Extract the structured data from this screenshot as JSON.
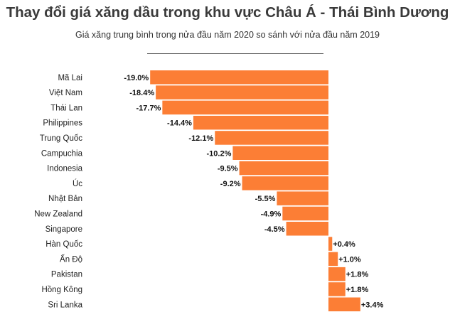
{
  "header": {
    "title": "Thay đổi giá xăng dầu trong khu vực Châu Á - Thái Bình Dương",
    "subtitle": "Giá xăng trung bình trong nửa đầu năm 2020 so sánh với nửa đầu năm 2019"
  },
  "colors": {
    "bar": "#fc7e35"
  },
  "chart_data": {
    "type": "bar",
    "orientation": "horizontal",
    "title": "Thay đổi giá xăng dầu trong khu vực Châu Á - Thái Bình Dương",
    "subtitle": "Giá xăng trung bình trong nửa đầu năm 2020 so sánh với nửa đầu năm 2019",
    "categories": [
      "Mã Lai",
      "Việt Nam",
      "Thái Lan",
      "Philippines",
      "Trung Quốc",
      "Campuchia",
      "Indonesia",
      "Úc",
      "Nhật Bản",
      "New Zealand",
      "Singapore",
      "Hàn Quốc",
      "Ấn Độ",
      "Pakistan",
      "Hồng Kông",
      "Sri Lanka"
    ],
    "values": [
      -19.0,
      -18.4,
      -17.7,
      -14.4,
      -12.1,
      -10.2,
      -9.5,
      -9.2,
      -5.5,
      -4.9,
      -4.5,
      0.4,
      1.0,
      1.8,
      1.8,
      3.4
    ],
    "labels": [
      "-19.0%",
      "-18.4%",
      "-17.7%",
      "-14.4%",
      "-12.1%",
      "-10.2%",
      "-9.5%",
      "-9.2%",
      "-5.5%",
      "-4.9%",
      "-4.5%",
      "+0.4%",
      "+1.0%",
      "+1.8%",
      "+1.8%",
      "+3.4%"
    ],
    "unit": "%",
    "grid": false,
    "legend": false
  }
}
